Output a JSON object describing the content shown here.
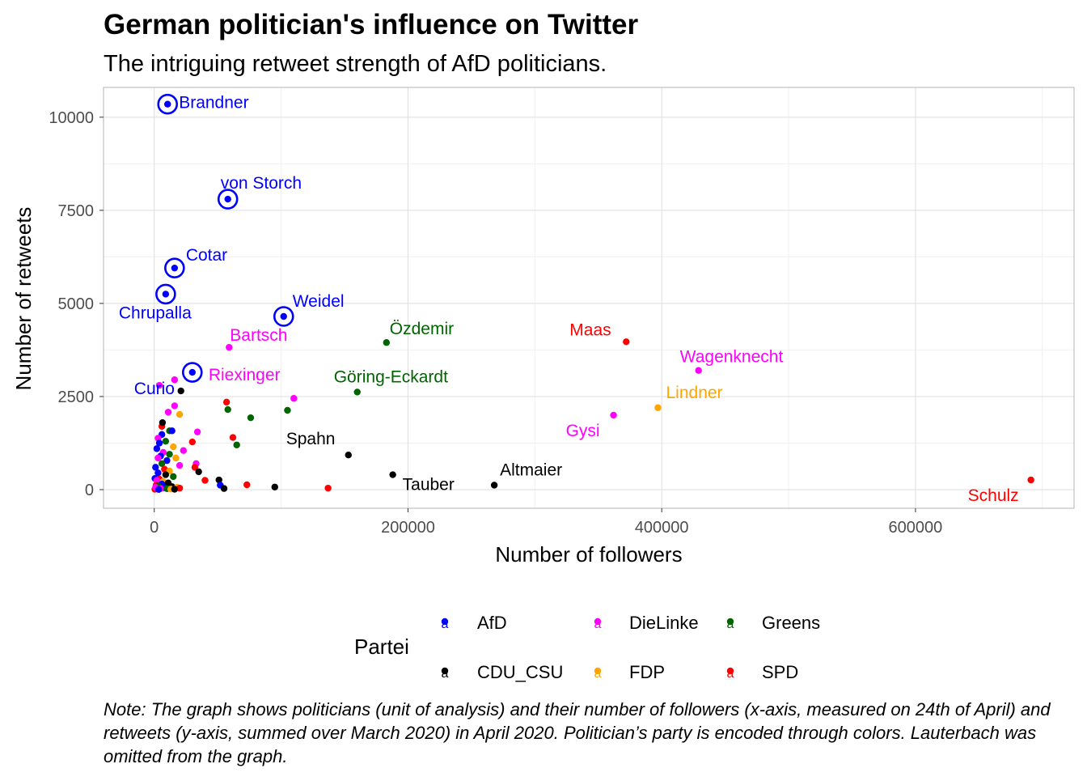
{
  "chart_data": {
    "type": "scatter",
    "title": "German politician's influence on Twitter",
    "subtitle": "The intriguing retweet strength of AfD politicians.",
    "xlabel": "Number of followers",
    "ylabel": "Number of retweets",
    "xlim": [
      -40000,
      725000
    ],
    "ylim": [
      -500,
      10800
    ],
    "x_ticks": [
      0,
      200000,
      400000,
      600000
    ],
    "x_tick_labels": [
      "0",
      "200000",
      "400000",
      "600000"
    ],
    "y_ticks": [
      0,
      2500,
      5000,
      7500,
      10000
    ],
    "y_tick_labels": [
      "0",
      "2500",
      "5000",
      "7500",
      "10000"
    ],
    "grid": true,
    "legend_title": "Partei",
    "legend_position": "bottom",
    "legend_key_glyph": "a",
    "parties": [
      {
        "name": "AfD",
        "color": "#0000ff"
      },
      {
        "name": "CDU_CSU",
        "color": "#000000"
      },
      {
        "name": "DieLinke",
        "color": "#ff00ff"
      },
      {
        "name": "FDP",
        "color": "#ffa500"
      },
      {
        "name": "Greens",
        "color": "#006400"
      },
      {
        "name": "SPD",
        "color": "#ff0000"
      }
    ],
    "labeled_points": [
      {
        "name": "Brandner",
        "party": "AfD",
        "x": 10500,
        "y": 10350,
        "circled": true
      },
      {
        "name": "von Storch",
        "party": "AfD",
        "x": 58000,
        "y": 7800,
        "circled": true
      },
      {
        "name": "Cotar",
        "party": "AfD",
        "x": 16000,
        "y": 5950,
        "circled": true
      },
      {
        "name": "Chrupalla",
        "party": "AfD",
        "x": 9000,
        "y": 5250,
        "circled": true
      },
      {
        "name": "Weidel",
        "party": "AfD",
        "x": 102000,
        "y": 4650,
        "circled": true
      },
      {
        "name": "Curio",
        "party": "AfD",
        "x": 30000,
        "y": 3150,
        "circled": true
      },
      {
        "name": "Bartsch",
        "party": "DieLinke",
        "x": 59000,
        "y": 3820
      },
      {
        "name": "Riexinger",
        "party": "DieLinke",
        "x": 16000,
        "y": 2950
      },
      {
        "name": "Özdemir",
        "party": "Greens",
        "x": 183000,
        "y": 3950
      },
      {
        "name": "Göring-Eckardt",
        "party": "Greens",
        "x": 160000,
        "y": 2620
      },
      {
        "name": "Maas",
        "party": "SPD",
        "x": 372000,
        "y": 3970
      },
      {
        "name": "Wagenknecht",
        "party": "DieLinke",
        "x": 429000,
        "y": 3200
      },
      {
        "name": "Lindner",
        "party": "FDP",
        "x": 397000,
        "y": 2200
      },
      {
        "name": "Gysi",
        "party": "DieLinke",
        "x": 362000,
        "y": 2000
      },
      {
        "name": "Spahn",
        "party": "CDU_CSU",
        "x": 153000,
        "y": 930
      },
      {
        "name": "Altmaier",
        "party": "CDU_CSU",
        "x": 268000,
        "y": 120
      },
      {
        "name": "Tauber",
        "party": "CDU_CSU",
        "x": 188000,
        "y": 400
      },
      {
        "name": "Schulz",
        "party": "SPD",
        "x": 691000,
        "y": 260
      }
    ],
    "other_points": [
      {
        "party": "CDU_CSU",
        "x": 21000,
        "y": 2650
      },
      {
        "party": "SPD",
        "x": 57000,
        "y": 2350
      },
      {
        "party": "Greens",
        "x": 58000,
        "y": 2150
      },
      {
        "party": "Greens",
        "x": 76000,
        "y": 1930
      },
      {
        "party": "Greens",
        "x": 105000,
        "y": 2130
      },
      {
        "party": "DieLinke",
        "x": 110000,
        "y": 2450
      },
      {
        "party": "DieLinke",
        "x": 34000,
        "y": 1550
      },
      {
        "party": "SPD",
        "x": 62000,
        "y": 1400
      },
      {
        "party": "Greens",
        "x": 65000,
        "y": 1200
      },
      {
        "party": "SPD",
        "x": 30000,
        "y": 1280
      },
      {
        "party": "DieLinke",
        "x": 23000,
        "y": 1050
      },
      {
        "party": "DieLinke",
        "x": 33000,
        "y": 700
      },
      {
        "party": "SPD",
        "x": 32000,
        "y": 600
      },
      {
        "party": "CDU_CSU",
        "x": 35000,
        "y": 480
      },
      {
        "party": "SPD",
        "x": 40000,
        "y": 250
      },
      {
        "party": "CDU_CSU",
        "x": 51000,
        "y": 260
      },
      {
        "party": "AfD",
        "x": 52000,
        "y": 120
      },
      {
        "party": "CDU_CSU",
        "x": 55000,
        "y": 30
      },
      {
        "party": "SPD",
        "x": 73000,
        "y": 130
      },
      {
        "party": "CDU_CSU",
        "x": 95000,
        "y": 70
      },
      {
        "party": "SPD",
        "x": 137000,
        "y": 40
      },
      {
        "party": "FDP",
        "x": 20000,
        "y": 2020
      },
      {
        "party": "DieLinke",
        "x": 16000,
        "y": 2250
      },
      {
        "party": "DieLinke",
        "x": 11000,
        "y": 2080
      },
      {
        "party": "DieLinke",
        "x": 4000,
        "y": 2800
      },
      {
        "party": "SPD",
        "x": 6000,
        "y": 1700
      },
      {
        "party": "CDU_CSU",
        "x": 6500,
        "y": 1800
      },
      {
        "party": "AfD",
        "x": 6000,
        "y": 1480
      },
      {
        "party": "Greens",
        "x": 12000,
        "y": 1580
      },
      {
        "party": "AfD",
        "x": 14000,
        "y": 1580
      },
      {
        "party": "DieLinke",
        "x": 3000,
        "y": 1380
      },
      {
        "party": "AfD",
        "x": 4000,
        "y": 1250
      },
      {
        "party": "Greens",
        "x": 9000,
        "y": 1300
      },
      {
        "party": "FDP",
        "x": 15000,
        "y": 1150
      },
      {
        "party": "AfD",
        "x": 2000,
        "y": 1100
      },
      {
        "party": "DieLinke",
        "x": 7000,
        "y": 1000
      },
      {
        "party": "Greens",
        "x": 12000,
        "y": 950
      },
      {
        "party": "AfD",
        "x": 5000,
        "y": 900
      },
      {
        "party": "FDP",
        "x": 17000,
        "y": 850
      },
      {
        "party": "DieLinke",
        "x": 3000,
        "y": 850
      },
      {
        "party": "AfD",
        "x": 10000,
        "y": 780
      },
      {
        "party": "Greens",
        "x": 6000,
        "y": 700
      },
      {
        "party": "DieLinke",
        "x": 20000,
        "y": 650
      },
      {
        "party": "AfD",
        "x": 1000,
        "y": 600
      },
      {
        "party": "SPD",
        "x": 8000,
        "y": 550
      },
      {
        "party": "FDP",
        "x": 12000,
        "y": 500
      },
      {
        "party": "AfD",
        "x": 3000,
        "y": 450
      },
      {
        "party": "CDU_CSU",
        "x": 9000,
        "y": 400
      },
      {
        "party": "Greens",
        "x": 15000,
        "y": 350
      },
      {
        "party": "AfD",
        "x": 500,
        "y": 300
      },
      {
        "party": "SPD",
        "x": 4000,
        "y": 280
      },
      {
        "party": "DieLinke",
        "x": 2000,
        "y": 250
      },
      {
        "party": "FDP",
        "x": 7000,
        "y": 220
      },
      {
        "party": "CDU_CSU",
        "x": 11000,
        "y": 180
      },
      {
        "party": "AfD",
        "x": 6000,
        "y": 150
      },
      {
        "party": "SPD",
        "x": 1500,
        "y": 120
      },
      {
        "party": "Greens",
        "x": 3000,
        "y": 100
      },
      {
        "party": "CDU_CSU",
        "x": 14000,
        "y": 80
      },
      {
        "party": "FDP",
        "x": 18000,
        "y": 60
      },
      {
        "party": "SPD",
        "x": 20000,
        "y": 40
      },
      {
        "party": "AfD",
        "x": 8000,
        "y": 50
      },
      {
        "party": "DieLinke",
        "x": 5000,
        "y": 30
      },
      {
        "party": "CDU_CSU",
        "x": 2500,
        "y": 20
      },
      {
        "party": "SPD",
        "x": 500,
        "y": 10
      },
      {
        "party": "Greens",
        "x": 10000,
        "y": 25
      },
      {
        "party": "FDP",
        "x": 13000,
        "y": 15
      },
      {
        "party": "CDU_CSU",
        "x": 16000,
        "y": 10
      },
      {
        "party": "DieLinke",
        "x": 1000,
        "y": 60
      },
      {
        "party": "AfD",
        "x": 3500,
        "y": 5
      }
    ],
    "caption": "Note: The graph shows politicians (unit of analysis) and their number of followers (x-axis, measured on 24th of April) and retweets (y-axis, summed over March 2020) in April 2020. Politician’s party is encoded through colors. Lauterbach was omitted from the graph."
  }
}
